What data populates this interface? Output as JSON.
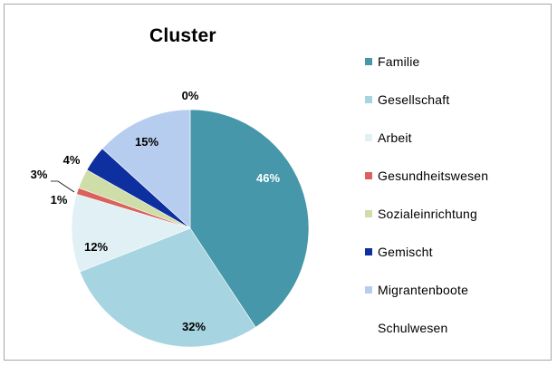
{
  "chart_data": {
    "type": "pie",
    "title": "Cluster",
    "unit": "%",
    "slices": [
      {
        "name": "Familie",
        "value": 46,
        "label": "46%",
        "color": "#4597a9",
        "label_color": "#ffffff"
      },
      {
        "name": "Gesellschaft",
        "value": 32,
        "label": "32%",
        "color": "#a6d4e1",
        "label_color": "#000000"
      },
      {
        "name": "Arbeit",
        "value": 12,
        "label": "12%",
        "color": "#e0f0f5",
        "label_color": "#000000"
      },
      {
        "name": "Gesundheitswesen",
        "value": 1,
        "label": "1%",
        "color": "#d9625c",
        "label_color": "#000000"
      },
      {
        "name": "Sozialeinrichtung",
        "value": 3,
        "label": "3%",
        "color": "#cfdda8",
        "label_color": "#000000"
      },
      {
        "name": "Gemischt",
        "value": 4,
        "label": "4%",
        "color": "#0d2fa0",
        "label_color": "#000000"
      },
      {
        "name": "Migrantenboote",
        "value": 15,
        "label": "15%",
        "color": "#b7cdef",
        "label_color": "#000000"
      },
      {
        "name": "Schulwesen",
        "value": 0,
        "label": "0%",
        "color": "#ffffff",
        "label_color": "#000000"
      }
    ],
    "legend_position": "right"
  }
}
